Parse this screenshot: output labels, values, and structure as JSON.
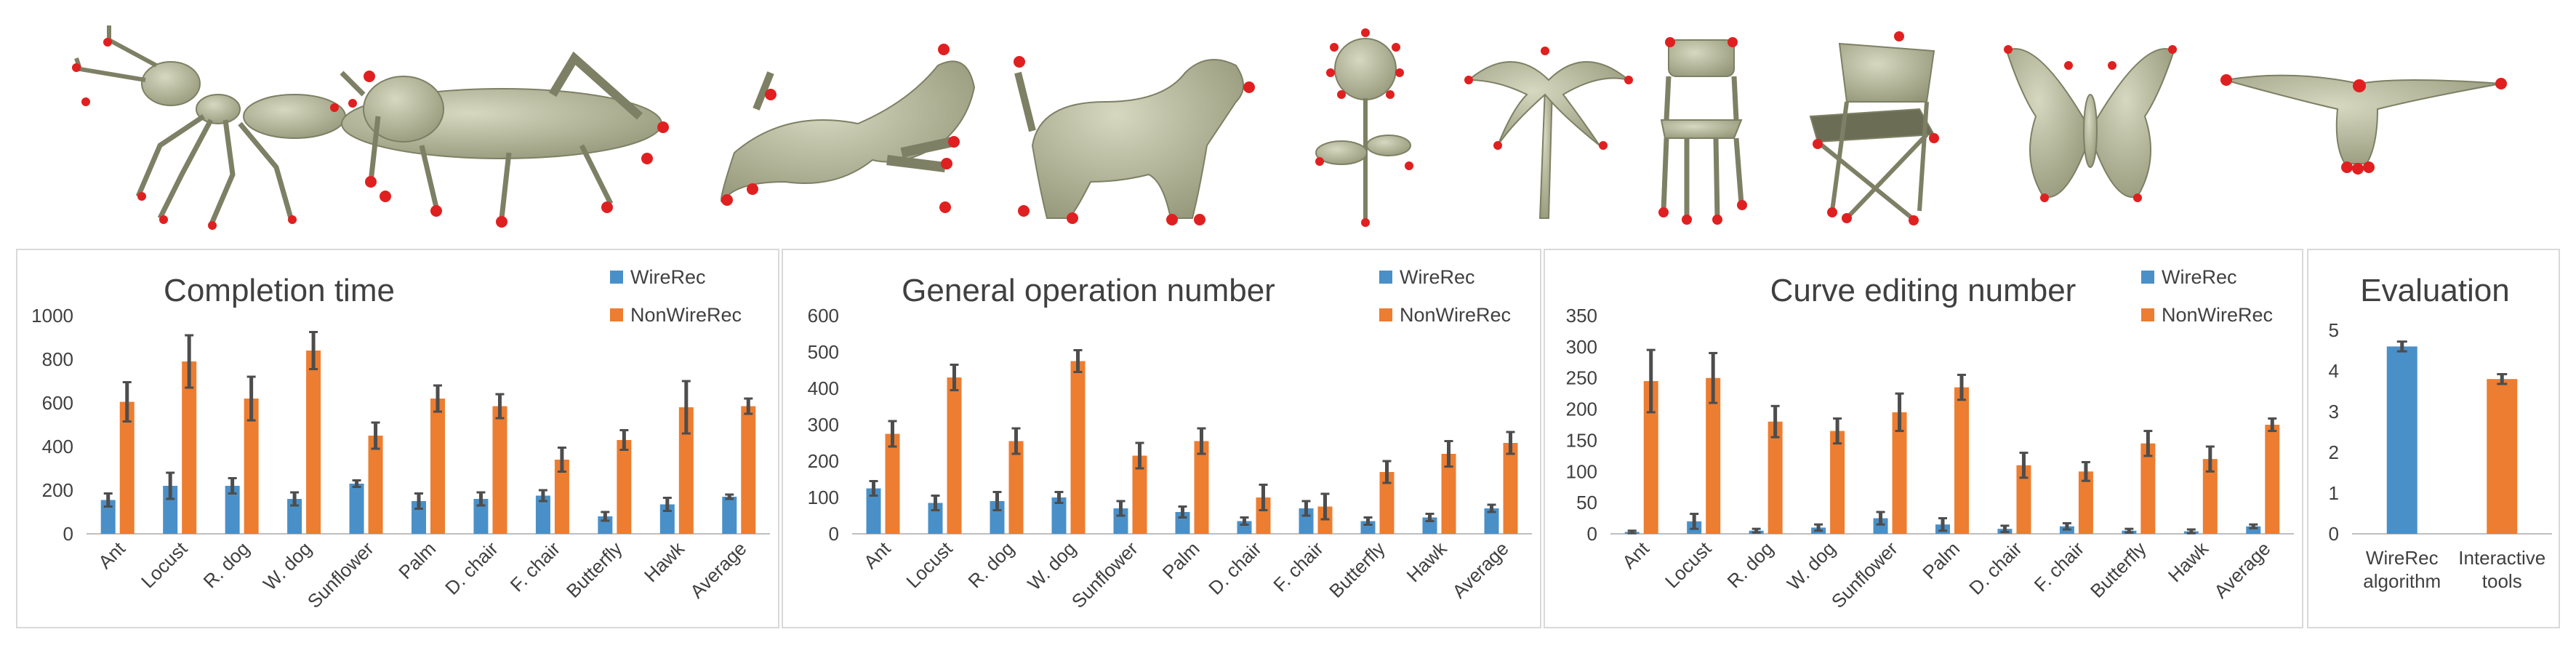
{
  "models": [
    {
      "name": "Ant"
    },
    {
      "name": "Locust"
    },
    {
      "name": "R. dog"
    },
    {
      "name": "W. dog"
    },
    {
      "name": "Sunflower"
    },
    {
      "name": "Palm"
    },
    {
      "name": "D. chair"
    },
    {
      "name": "F. chair"
    },
    {
      "name": "Butterfly"
    },
    {
      "name": "Hawk"
    }
  ],
  "colors": {
    "wirerec": "#4a90c8",
    "nonwirerec": "#ed7d31",
    "model": "#b5b89a",
    "keypoint": "#e02020",
    "error_bar": "#4d4d4d",
    "axis": "#bfbfbf"
  },
  "chart_data": [
    {
      "type": "bar",
      "title": "Completion time",
      "categories": [
        "Ant",
        "Locust",
        "R. dog",
        "W. dog",
        "Sunflower",
        "Palm",
        "D. chair",
        "F. chair",
        "Butterfly",
        "Hawk",
        "Average"
      ],
      "ylim": [
        0,
        1000
      ],
      "yticks": [
        "0",
        "200",
        "400",
        "600",
        "800",
        "1000"
      ],
      "legend": "top-right",
      "series": [
        {
          "name": "WireRec",
          "values": [
            155,
            220,
            220,
            160,
            230,
            150,
            160,
            175,
            80,
            135,
            170
          ],
          "errors": [
            30,
            60,
            35,
            30,
            15,
            35,
            30,
            25,
            20,
            30,
            10
          ]
        },
        {
          "name": "NonWireRec",
          "values": [
            605,
            790,
            620,
            840,
            450,
            620,
            585,
            340,
            430,
            580,
            585
          ],
          "errors": [
            90,
            120,
            100,
            85,
            60,
            60,
            55,
            55,
            45,
            120,
            35
          ]
        }
      ]
    },
    {
      "type": "bar",
      "title": "General operation number",
      "categories": [
        "Ant",
        "Locust",
        "R. dog",
        "W. dog",
        "Sunflower",
        "Palm",
        "D. chair",
        "F. chair",
        "Butterfly",
        "Hawk",
        "Average"
      ],
      "ylim": [
        0,
        600
      ],
      "yticks": [
        "0",
        "100",
        "200",
        "300",
        "400",
        "500",
        "600"
      ],
      "legend": "top-right",
      "series": [
        {
          "name": "WireRec",
          "values": [
            125,
            85,
            90,
            100,
            70,
            60,
            35,
            70,
            35,
            45,
            70
          ],
          "errors": [
            20,
            20,
            25,
            15,
            20,
            15,
            10,
            20,
            10,
            10,
            10
          ]
        },
        {
          "name": "NonWireRec",
          "values": [
            275,
            430,
            255,
            475,
            215,
            255,
            100,
            75,
            170,
            220,
            250
          ],
          "errors": [
            35,
            35,
            35,
            30,
            35,
            35,
            35,
            35,
            30,
            35,
            30
          ]
        }
      ]
    },
    {
      "type": "bar",
      "title": "Curve editing number",
      "categories": [
        "Ant",
        "Locust",
        "R. dog",
        "W. dog",
        "Sunflower",
        "Palm",
        "D. chair",
        "F. chair",
        "Butterfly",
        "Hawk",
        "Average"
      ],
      "ylim": [
        0,
        350
      ],
      "yticks": [
        "0",
        "50",
        "100",
        "150",
        "200",
        "250",
        "300",
        "350"
      ],
      "legend": "top-right",
      "series": [
        {
          "name": "WireRec",
          "values": [
            3,
            20,
            5,
            10,
            25,
            15,
            8,
            12,
            5,
            4,
            12
          ],
          "errors": [
            2,
            12,
            3,
            5,
            10,
            10,
            5,
            5,
            3,
            3,
            3
          ]
        },
        {
          "name": "NonWireRec",
          "values": [
            245,
            250,
            180,
            165,
            195,
            235,
            110,
            100,
            145,
            120,
            175
          ],
          "errors": [
            50,
            40,
            25,
            20,
            30,
            20,
            20,
            15,
            20,
            20,
            10
          ]
        }
      ]
    },
    {
      "type": "bar",
      "title": "Evaluation",
      "categories": [
        "WireRec algorithm",
        "Interactive tools"
      ],
      "category_lines": [
        [
          "WireRec",
          "algorithm"
        ],
        [
          "Interactive",
          "tools"
        ]
      ],
      "ylim": [
        0,
        5
      ],
      "yticks": [
        "0",
        "1",
        "2",
        "3",
        "4",
        "5"
      ],
      "values": [
        4.6,
        3.8
      ],
      "errors": [
        0.12,
        0.12
      ]
    }
  ]
}
